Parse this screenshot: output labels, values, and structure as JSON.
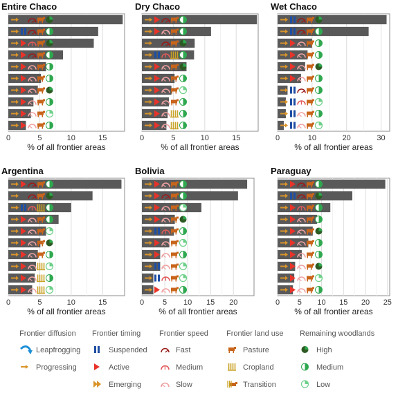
{
  "chart_data": [
    {
      "type": "bar",
      "title": "Entire Chaco",
      "xlabel": "% of all frontier areas",
      "xlim": [
        0,
        18.5
      ],
      "xticks": [
        0,
        5,
        10,
        15
      ],
      "values": [
        18.2,
        14.3,
        13.6,
        8.7,
        6.0,
        5.2,
        4.7,
        4.0,
        3.6,
        2.8
      ],
      "icons": [
        [
          "P",
          "X",
          "Fa",
          "Pa",
          "Hi"
        ],
        [
          "P",
          "S",
          "Fa",
          "Pa",
          "Me"
        ],
        [
          "P",
          "A",
          "Me",
          "Pa",
          "Hi"
        ],
        [
          "P",
          "A",
          "Fa",
          "Pa",
          "Me"
        ],
        [
          "P",
          "A",
          "Sl",
          "Pa",
          "Me"
        ],
        [
          "P",
          "A",
          "Sl",
          "Pa",
          "Me"
        ],
        [
          "P",
          "A",
          "Sl",
          "Pa",
          "Hi"
        ],
        [
          "P",
          "A",
          "Sl",
          "Pa",
          "Me"
        ],
        [
          "P",
          "A",
          "Sl",
          "Pa",
          "Lo"
        ],
        [
          "P",
          "A",
          "Sl",
          "Pa",
          "Me"
        ]
      ]
    },
    {
      "type": "bar",
      "title": "Dry Chaco",
      "xlabel": "% of all frontier areas",
      "xlim": [
        0,
        18.5
      ],
      "xticks": [
        0,
        5,
        10,
        15
      ],
      "values": [
        18.3,
        11.0,
        8.4,
        8.3,
        7.1,
        5.2,
        4.7,
        4.3,
        4.1,
        3.9
      ],
      "icons": [
        [
          "P",
          "A",
          "Fa",
          "Pa",
          "Me"
        ],
        [
          "P",
          "A",
          "Sl",
          "Pa",
          "Me"
        ],
        [
          "P",
          "X",
          "Fa",
          "Pa",
          "Hi"
        ],
        [
          "P",
          "S",
          "Me",
          "Cr",
          "Me"
        ],
        [
          "P",
          "A",
          "Sl",
          "Pa",
          "Hi"
        ],
        [
          "P",
          "A",
          "Sl",
          "Pa",
          "Me"
        ],
        [
          "P",
          "A",
          "Sl",
          "Pa",
          "Lo"
        ],
        [
          "P",
          "A",
          "Sl",
          "Pa",
          "Me"
        ],
        [
          "P",
          "A",
          "Sl",
          "Cr",
          "Me"
        ],
        [
          "P",
          "A",
          "Sl",
          "Cr",
          "Me"
        ]
      ]
    },
    {
      "type": "bar",
      "title": "Wet Chaco",
      "xlabel": "% of all frontier areas",
      "xlim": [
        0,
        32.5
      ],
      "xticks": [
        0,
        10,
        20,
        30
      ],
      "values": [
        31.6,
        26.4,
        10.0,
        8.7,
        8.0,
        6.8,
        2.9,
        2.4,
        2.4,
        1.8
      ],
      "icons": [
        [
          "P",
          "S",
          "Fa",
          "Pa",
          "Hi"
        ],
        [
          "P",
          "S",
          "Fa",
          "Pa",
          "Me"
        ],
        [
          "P",
          "A",
          "Sl",
          "Pa",
          "Me"
        ],
        [
          "P",
          "A",
          "Sl",
          "Pa",
          "Me"
        ],
        [
          "P",
          "A",
          "Sl",
          "Pa",
          "Hi"
        ],
        [
          "P",
          "A",
          "Sl",
          "Pa",
          "Me"
        ],
        [
          "P",
          "S",
          "Fa",
          "Pa",
          "Me"
        ],
        [
          "P",
          "S",
          "Me",
          "Pa",
          "Lo"
        ],
        [
          "P",
          "S",
          "Sl",
          "Pa",
          "Me"
        ],
        [
          "P",
          "S",
          "Sl",
          "Pa",
          "Lo"
        ]
      ]
    },
    {
      "type": "bar",
      "title": "Argentina",
      "xlabel": "% of all frontier areas",
      "xlim": [
        0,
        18.5
      ],
      "xticks": [
        0,
        5,
        10,
        15
      ],
      "values": [
        18.0,
        13.4,
        10.0,
        8.0,
        6.0,
        5.1,
        4.7,
        4.4,
        4.2,
        3.8
      ],
      "icons": [
        [
          "P",
          "A",
          "Fa",
          "Pa",
          "Me"
        ],
        [
          "P",
          "X",
          "Fa",
          "Pa",
          "Hi"
        ],
        [
          "P",
          "S",
          "Me",
          "Cr",
          "Me"
        ],
        [
          "P",
          "A",
          "Sl",
          "Pa",
          "Me"
        ],
        [
          "P",
          "A",
          "Sl",
          "Pa",
          "Lo"
        ],
        [
          "P",
          "A",
          "Sl",
          "Pa",
          "Hi"
        ],
        [
          "P",
          "A",
          "Sl",
          "Pa",
          "Me"
        ],
        [
          "P",
          "A",
          "Sl",
          "Cr",
          "Lo"
        ],
        [
          "P",
          "A",
          "Sl",
          "Cr",
          "Me"
        ],
        [
          "P",
          "A",
          "Sl",
          "Cr",
          "Lo"
        ]
      ]
    },
    {
      "type": "bar",
      "title": "Bolivia",
      "xlabel": "% of all frontier areas",
      "xlim": [
        0,
        24.5
      ],
      "xticks": [
        0,
        5,
        10,
        15,
        20
      ],
      "values": [
        23.0,
        21.0,
        13.0,
        7.2,
        7.0,
        6.0,
        4.0,
        4.0,
        2.5,
        2.5
      ],
      "icons": [
        [
          "P",
          "A",
          "Sl",
          "Pa",
          "Me"
        ],
        [
          "P",
          "A",
          "Fa",
          "Pa",
          "Me"
        ],
        [
          "P",
          "A",
          "Sl",
          "Pa",
          "Lo"
        ],
        [
          "P",
          "A",
          "Sl",
          "Pa",
          "Hi"
        ],
        [
          "P",
          "S",
          "Me",
          "Pa",
          "Me"
        ],
        [
          "P",
          "A",
          "Sl",
          "Pa",
          "Lo"
        ],
        [
          "P",
          "A",
          "Sl",
          "Pa",
          "Me"
        ],
        [
          "P",
          "S",
          "Sl",
          "Pa",
          "Lo"
        ],
        [
          "P",
          "S",
          "Me",
          "Pa",
          "Lo"
        ],
        [
          "P",
          "A",
          "Sl",
          "Pa",
          "Me"
        ]
      ]
    },
    {
      "type": "bar",
      "title": "Paraguay",
      "xlabel": "% of all frontier areas",
      "xlim": [
        0,
        25.5
      ],
      "xticks": [
        0,
        5,
        10,
        15,
        20,
        25
      ],
      "values": [
        24.5,
        17.0,
        12.0,
        9.0,
        8.0,
        7.0,
        5.5,
        4.0,
        3.8,
        3.5
      ],
      "icons": [
        [
          "P",
          "A",
          "Fa",
          "Pa",
          "Me"
        ],
        [
          "P",
          "S",
          "Fa",
          "Pa",
          "Hi"
        ],
        [
          "P",
          "A",
          "Me",
          "Pa",
          "Me"
        ],
        [
          "P",
          "A",
          "Sl",
          "Pa",
          "Me"
        ],
        [
          "P",
          "A",
          "Sl",
          "Pa",
          "Hi"
        ],
        [
          "P",
          "A",
          "Sl",
          "Pa",
          "Me"
        ],
        [
          "P",
          "A",
          "Sl",
          "Pa",
          "Me"
        ],
        [
          "P",
          "A",
          "Sl",
          "Pa",
          "Hi"
        ],
        [
          "P",
          "A",
          "Sl",
          "Pa",
          "Lo"
        ],
        [
          "P",
          "A",
          "Sl",
          "Pa",
          "Me"
        ]
      ]
    }
  ],
  "legend": {
    "groups": [
      {
        "title": "Frontier diffusion",
        "items": [
          {
            "label": "Leapfrogging",
            "icon": "L"
          },
          {
            "label": "Progressing",
            "icon": "P"
          }
        ]
      },
      {
        "title": "Frontier timing",
        "items": [
          {
            "label": "Suspended",
            "icon": "S"
          },
          {
            "label": "Active",
            "icon": "A"
          },
          {
            "label": "Emerging",
            "icon": "E"
          }
        ]
      },
      {
        "title": "Frontier speed",
        "items": [
          {
            "label": "Fast",
            "icon": "Fa"
          },
          {
            "label": "Medium",
            "icon": "Me"
          },
          {
            "label": "Slow",
            "icon": "Sl"
          }
        ]
      },
      {
        "title": "Frontier land use",
        "items": [
          {
            "label": "Pasture",
            "icon": "Pa"
          },
          {
            "label": "Cropland",
            "icon": "Cr"
          },
          {
            "label": "Transition",
            "icon": "Tr"
          }
        ]
      },
      {
        "title": "Remaining woodlands",
        "items": [
          {
            "label": "High",
            "icon": "Hi"
          },
          {
            "label": "Medium",
            "icon": "Me2"
          },
          {
            "label": "Low",
            "icon": "Lo"
          }
        ]
      }
    ]
  },
  "colors": {
    "bar": "#595959",
    "panel_border": "#8c8c8c",
    "grid": "#dddddd",
    "orange": "#d9942a",
    "blue": "#1f4ea3",
    "red": "#e8332a",
    "speed": "#c0392b",
    "cow": "#c8651b",
    "crop": "#c9a227",
    "green_dark": "#2d5a23",
    "green": "#2fa84f",
    "green_light": "#6fd08a"
  }
}
